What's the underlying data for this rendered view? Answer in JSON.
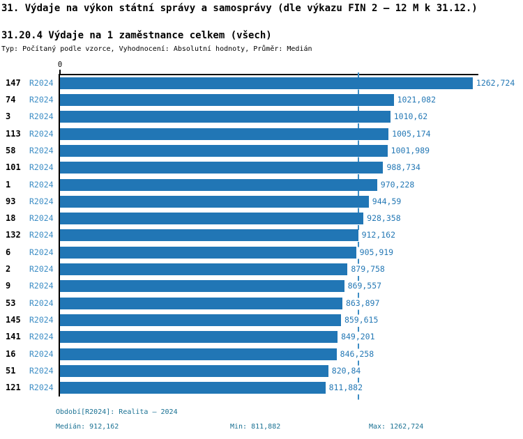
{
  "header": {
    "title": "31. Výdaje na výkon státní správy a samosprávy (dle výkazu FIN 2 – 12 M k 31.12.)",
    "subtitle": "31.20.4 Výdaje na 1 zaměstnance celkem (všech)",
    "meta": "Typ: Počítaný podle vzorce, Vyhodnocení: Absolutní hodnoty, Průměr: Medián"
  },
  "chart_data": {
    "type": "bar",
    "orientation": "horizontal",
    "title": "31.20.4 Výdaje na 1 zaměstnance celkem (všech)",
    "categories": [
      "147",
      "74",
      "3",
      "113",
      "58",
      "101",
      "1",
      "93",
      "18",
      "132",
      "6",
      "2",
      "9",
      "53",
      "145",
      "141",
      "16",
      "51",
      "121"
    ],
    "series_label": "R2024",
    "values": [
      1262.724,
      1021.082,
      1010.62,
      1005.174,
      1001.989,
      988.734,
      970.228,
      944.59,
      928.358,
      912.162,
      905.919,
      879.758,
      869.557,
      863.897,
      859.615,
      849.201,
      846.258,
      820.84,
      811.882
    ],
    "value_labels": [
      "1262,724",
      "1021,082",
      "1010,62",
      "1005,174",
      "1001,989",
      "988,734",
      "970,228",
      "944,59",
      "928,358",
      "912,162",
      "905,919",
      "879,758",
      "869,557",
      "863,897",
      "859,615",
      "849,201",
      "846,258",
      "820,84",
      "811,882"
    ],
    "xlim": [
      0,
      1280
    ],
    "zero_tick_label": "0",
    "median_value": 912.162,
    "grid": false,
    "legend_position": "none"
  },
  "footer": {
    "period": "Období[R2024]: Realita – 2024",
    "median": "Medián: 912,162",
    "min": "Min: 811,882",
    "max": "Max: 1262,724"
  },
  "colors": {
    "bar": "#2176b5",
    "median_line": "#3d8dc4",
    "value_label": "#2478b5",
    "period_label": "#3c8dc5",
    "category_label": "#000000",
    "footer_text": "#1a7193",
    "axis": "#000000"
  }
}
